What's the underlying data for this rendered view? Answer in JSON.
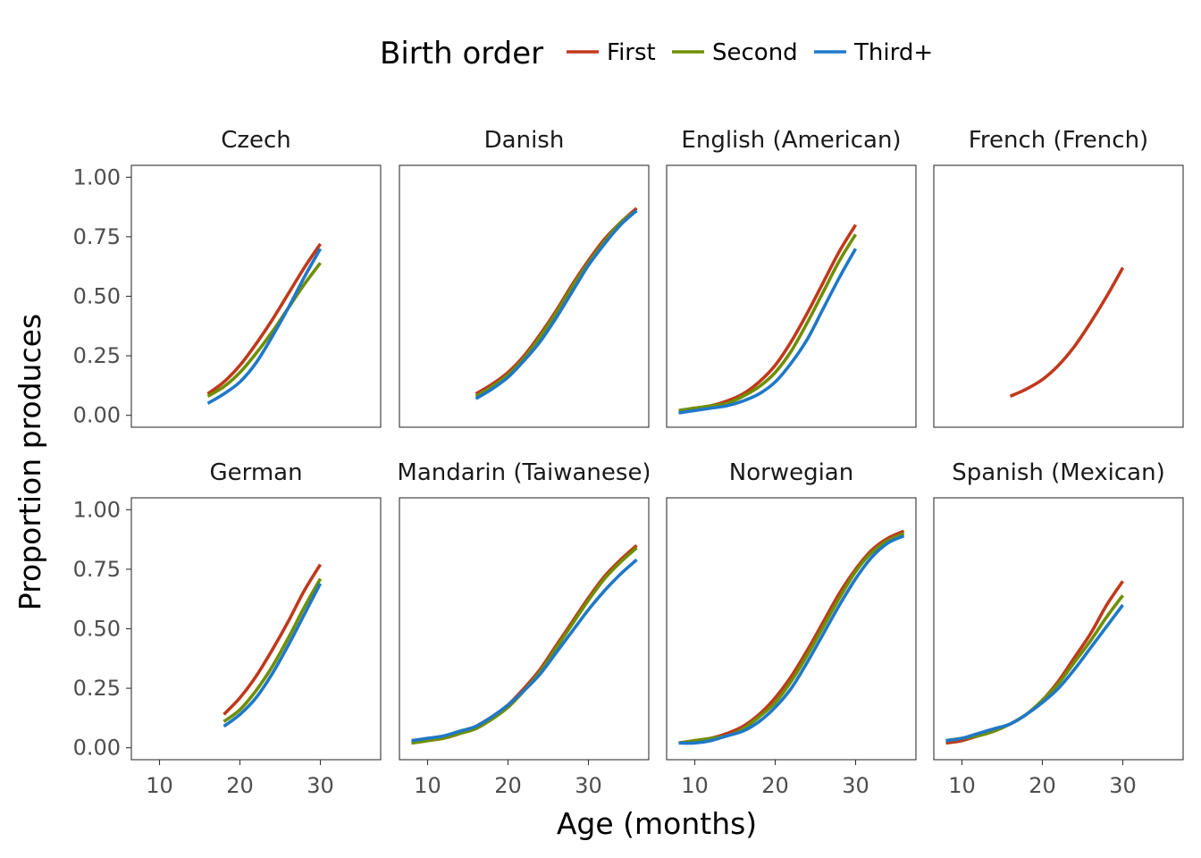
{
  "chart_data": {
    "type": "line",
    "xlabel": "Age (months)",
    "ylabel": "Proportion produces",
    "xlim": [
      6.5,
      37.5
    ],
    "ylim": [
      -0.05,
      1.05
    ],
    "x_ticks": [
      10,
      20,
      30
    ],
    "y_ticks": [
      0,
      0.25,
      0.5,
      0.75,
      1
    ],
    "y_tick_labels": [
      "0.00",
      "0.25",
      "0.50",
      "0.75",
      "1.00"
    ],
    "legend": {
      "title": "Birth order",
      "placement": "top",
      "entries": [
        {
          "name": "First",
          "color": "#c0391b"
        },
        {
          "name": "Second",
          "color": "#6f8f00"
        },
        {
          "name": "Third+",
          "color": "#1f78c8"
        }
      ]
    },
    "grid": false,
    "panels": [
      {
        "title": "Czech",
        "series": [
          {
            "name": "First",
            "x": [
              16,
              18,
              20,
              22,
              24,
              26,
              28,
              30
            ],
            "y": [
              0.09,
              0.14,
              0.21,
              0.3,
              0.4,
              0.51,
              0.62,
              0.72
            ]
          },
          {
            "name": "Second",
            "x": [
              16,
              18,
              20,
              22,
              24,
              26,
              28,
              30
            ],
            "y": [
              0.08,
              0.12,
              0.18,
              0.26,
              0.35,
              0.45,
              0.55,
              0.64
            ]
          },
          {
            "name": "Third+",
            "x": [
              16,
              18,
              20,
              22,
              24,
              26,
              28,
              30
            ],
            "y": [
              0.05,
              0.09,
              0.14,
              0.22,
              0.33,
              0.45,
              0.58,
              0.7
            ]
          }
        ]
      },
      {
        "title": "Danish",
        "series": [
          {
            "name": "First",
            "x": [
              16,
              18,
              20,
              22,
              24,
              26,
              28,
              30,
              32,
              34,
              36
            ],
            "y": [
              0.09,
              0.13,
              0.18,
              0.25,
              0.34,
              0.44,
              0.55,
              0.65,
              0.74,
              0.81,
              0.87
            ]
          },
          {
            "name": "Second",
            "x": [
              16,
              18,
              20,
              22,
              24,
              26,
              28,
              30,
              32,
              34,
              36
            ],
            "y": [
              0.08,
              0.12,
              0.17,
              0.24,
              0.33,
              0.43,
              0.54,
              0.64,
              0.73,
              0.81,
              0.86
            ]
          },
          {
            "name": "Third+",
            "x": [
              16,
              18,
              20,
              22,
              24,
              26,
              28,
              30,
              32,
              34,
              36
            ],
            "y": [
              0.07,
              0.11,
              0.16,
              0.23,
              0.31,
              0.41,
              0.52,
              0.63,
              0.72,
              0.8,
              0.86
            ]
          }
        ]
      },
      {
        "title": "English (American)",
        "series": [
          {
            "name": "First",
            "x": [
              8,
              10,
              12,
              14,
              16,
              18,
              20,
              22,
              24,
              26,
              28,
              30
            ],
            "y": [
              0.02,
              0.03,
              0.04,
              0.06,
              0.09,
              0.14,
              0.21,
              0.31,
              0.43,
              0.56,
              0.69,
              0.8
            ]
          },
          {
            "name": "Second",
            "x": [
              8,
              10,
              12,
              14,
              16,
              18,
              20,
              22,
              24,
              26,
              28,
              30
            ],
            "y": [
              0.02,
              0.03,
              0.04,
              0.05,
              0.08,
              0.12,
              0.18,
              0.27,
              0.39,
              0.52,
              0.65,
              0.76
            ]
          },
          {
            "name": "Third+",
            "x": [
              8,
              10,
              12,
              14,
              16,
              18,
              20,
              22,
              24,
              26,
              28,
              30
            ],
            "y": [
              0.01,
              0.02,
              0.03,
              0.04,
              0.06,
              0.09,
              0.14,
              0.22,
              0.32,
              0.45,
              0.58,
              0.7
            ]
          }
        ]
      },
      {
        "title": "French (French)",
        "series": [
          {
            "name": "First",
            "x": [
              16,
              18,
              20,
              22,
              24,
              26,
              28,
              30
            ],
            "y": [
              0.08,
              0.11,
              0.15,
              0.21,
              0.29,
              0.39,
              0.5,
              0.62
            ]
          }
        ]
      },
      {
        "title": "German",
        "series": [
          {
            "name": "First",
            "x": [
              18,
              20,
              22,
              24,
              26,
              28,
              30
            ],
            "y": [
              0.14,
              0.21,
              0.3,
              0.41,
              0.53,
              0.66,
              0.77
            ]
          },
          {
            "name": "Second",
            "x": [
              18,
              20,
              22,
              24,
              26,
              28,
              30
            ],
            "y": [
              0.11,
              0.16,
              0.24,
              0.34,
              0.46,
              0.59,
              0.71
            ]
          },
          {
            "name": "Third+",
            "x": [
              18,
              20,
              22,
              24,
              26,
              28,
              30
            ],
            "y": [
              0.09,
              0.14,
              0.21,
              0.31,
              0.43,
              0.56,
              0.69
            ]
          }
        ]
      },
      {
        "title": "Mandarin (Taiwanese)",
        "series": [
          {
            "name": "First",
            "x": [
              8,
              10,
              12,
              14,
              16,
              18,
              20,
              22,
              24,
              26,
              28,
              30,
              32,
              34,
              36
            ],
            "y": [
              0.02,
              0.03,
              0.04,
              0.06,
              0.09,
              0.13,
              0.18,
              0.25,
              0.33,
              0.43,
              0.53,
              0.63,
              0.72,
              0.79,
              0.85
            ]
          },
          {
            "name": "Second",
            "x": [
              8,
              10,
              12,
              14,
              16,
              18,
              20,
              22,
              24,
              26,
              28,
              30,
              32,
              34,
              36
            ],
            "y": [
              0.02,
              0.03,
              0.04,
              0.06,
              0.08,
              0.12,
              0.17,
              0.24,
              0.32,
              0.42,
              0.52,
              0.62,
              0.71,
              0.78,
              0.84
            ]
          },
          {
            "name": "Third+",
            "x": [
              8,
              10,
              12,
              14,
              16,
              18,
              20,
              22,
              24,
              26,
              28,
              30,
              32,
              34,
              36
            ],
            "y": [
              0.03,
              0.04,
              0.05,
              0.07,
              0.09,
              0.13,
              0.18,
              0.24,
              0.31,
              0.4,
              0.49,
              0.58,
              0.66,
              0.73,
              0.79
            ]
          }
        ]
      },
      {
        "title": "Norwegian",
        "series": [
          {
            "name": "First",
            "x": [
              8,
              10,
              12,
              14,
              16,
              18,
              20,
              22,
              24,
              26,
              28,
              30,
              32,
              34,
              36
            ],
            "y": [
              0.02,
              0.03,
              0.04,
              0.06,
              0.09,
              0.14,
              0.21,
              0.3,
              0.41,
              0.53,
              0.65,
              0.75,
              0.83,
              0.88,
              0.91
            ]
          },
          {
            "name": "Second",
            "x": [
              8,
              10,
              12,
              14,
              16,
              18,
              20,
              22,
              24,
              26,
              28,
              30,
              32,
              34,
              36
            ],
            "y": [
              0.02,
              0.03,
              0.04,
              0.05,
              0.08,
              0.13,
              0.19,
              0.28,
              0.39,
              0.51,
              0.63,
              0.74,
              0.82,
              0.87,
              0.9
            ]
          },
          {
            "name": "Third+",
            "x": [
              8,
              10,
              12,
              14,
              16,
              18,
              20,
              22,
              24,
              26,
              28,
              30,
              32,
              34,
              36
            ],
            "y": [
              0.02,
              0.02,
              0.03,
              0.05,
              0.07,
              0.11,
              0.17,
              0.25,
              0.36,
              0.48,
              0.6,
              0.71,
              0.8,
              0.86,
              0.89
            ]
          }
        ]
      },
      {
        "title": "Spanish (Mexican)",
        "series": [
          {
            "name": "First",
            "x": [
              8,
              10,
              12,
              14,
              16,
              18,
              20,
              22,
              24,
              26,
              28,
              30
            ],
            "y": [
              0.02,
              0.03,
              0.05,
              0.07,
              0.1,
              0.14,
              0.2,
              0.28,
              0.38,
              0.48,
              0.6,
              0.7
            ]
          },
          {
            "name": "Second",
            "x": [
              8,
              10,
              12,
              14,
              16,
              18,
              20,
              22,
              24,
              26,
              28,
              30
            ],
            "y": [
              0.03,
              0.04,
              0.05,
              0.07,
              0.1,
              0.14,
              0.2,
              0.27,
              0.36,
              0.45,
              0.55,
              0.64
            ]
          },
          {
            "name": "Third+",
            "x": [
              8,
              10,
              12,
              14,
              16,
              18,
              20,
              22,
              24,
              26,
              28,
              30
            ],
            "y": [
              0.03,
              0.04,
              0.06,
              0.08,
              0.1,
              0.14,
              0.19,
              0.25,
              0.33,
              0.42,
              0.51,
              0.6
            ]
          }
        ]
      }
    ]
  }
}
